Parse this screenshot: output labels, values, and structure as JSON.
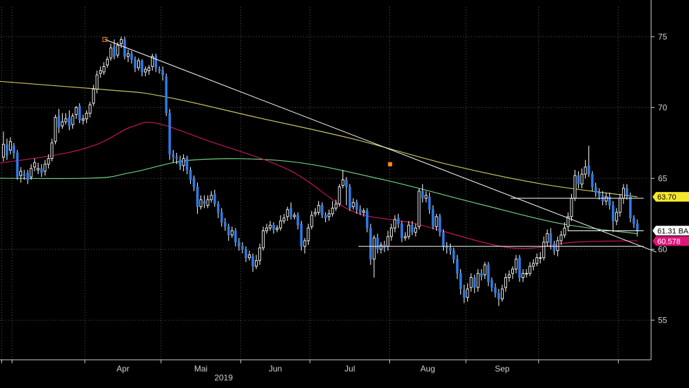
{
  "chart_data": {
    "type": "candlestick",
    "year_label": "2019",
    "x_months": [
      "Apr",
      "Mai",
      "Jun",
      "Jul",
      "Aug",
      "Sep"
    ],
    "y_ticks": [
      55,
      60,
      65,
      70,
      75
    ],
    "ylim": [
      52.2,
      77.1
    ],
    "grid": true,
    "candles_start": "2019-02-26",
    "candles": [
      [
        66.5,
        67.4,
        68.3,
        66.2
      ],
      [
        67.4,
        66.6,
        67.8,
        66.3
      ],
      [
        67.0,
        67.6,
        67.9,
        66.7
      ],
      [
        67.3,
        66.8,
        67.5,
        66.4
      ],
      [
        66.8,
        65.1,
        67.0,
        64.9
      ],
      [
        65.2,
        65.5,
        65.8,
        64.7
      ],
      [
        65.3,
        65.2,
        65.6,
        64.9
      ],
      [
        65.4,
        64.9,
        65.6,
        64.6
      ],
      [
        65.1,
        65.7,
        66.0,
        64.9
      ],
      [
        65.8,
        66.1,
        66.4,
        65.5
      ],
      [
        65.6,
        65.7,
        66.1,
        65.3
      ],
      [
        65.7,
        65.4,
        66.0,
        65.1
      ],
      [
        65.5,
        66.0,
        66.3,
        65.2
      ],
      [
        66.0,
        66.4,
        66.7,
        65.7
      ],
      [
        66.4,
        67.5,
        67.8,
        66.2
      ],
      [
        67.6,
        69.3,
        69.5,
        67.4
      ],
      [
        69.4,
        68.6,
        69.9,
        68.2
      ],
      [
        68.7,
        69.0,
        69.6,
        68.5
      ],
      [
        69.0,
        69.2,
        69.6,
        68.8
      ],
      [
        69.3,
        68.7,
        69.8,
        68.4
      ],
      [
        68.8,
        69.4,
        69.6,
        68.5
      ],
      [
        69.5,
        70.0,
        70.1,
        69.2
      ],
      [
        70.1,
        69.1,
        70.3,
        68.9
      ],
      [
        69.1,
        69.2,
        69.5,
        68.8
      ],
      [
        69.2,
        69.6,
        69.8,
        68.9
      ],
      [
        69.6,
        70.2,
        70.4,
        69.3
      ],
      [
        70.3,
        71.3,
        71.6,
        70.1
      ],
      [
        71.3,
        72.3,
        72.6,
        71.0
      ],
      [
        72.4,
        72.6,
        72.9,
        72.1
      ],
      [
        72.5,
        72.9,
        73.2,
        72.3
      ],
      [
        73.0,
        73.4,
        73.6,
        72.8
      ],
      [
        73.5,
        74.2,
        74.5,
        73.3
      ],
      [
        74.3,
        73.6,
        74.8,
        73.4
      ],
      [
        73.7,
        74.4,
        74.6,
        73.5
      ],
      [
        74.5,
        74.8,
        75.0,
        74.2
      ],
      [
        74.8,
        73.6,
        75.0,
        73.4
      ],
      [
        73.6,
        73.8,
        74.1,
        73.2
      ],
      [
        73.8,
        73.4,
        74.0,
        73.1
      ],
      [
        73.4,
        72.8,
        73.6,
        72.5
      ],
      [
        72.8,
        73.3,
        73.5,
        72.6
      ],
      [
        73.3,
        72.5,
        73.4,
        72.2
      ],
      [
        72.5,
        72.7,
        72.9,
        72.2
      ],
      [
        72.6,
        72.8,
        73.0,
        72.3
      ],
      [
        72.9,
        73.6,
        73.8,
        72.6
      ],
      [
        73.6,
        72.8,
        73.8,
        72.5
      ],
      [
        72.7,
        72.6,
        72.9,
        72.4
      ],
      [
        72.6,
        72.3,
        72.9,
        71.9
      ],
      [
        72.2,
        69.6,
        72.4,
        69.4
      ],
      [
        69.6,
        66.7,
        69.9,
        66.3
      ],
      [
        66.7,
        66.5,
        67.0,
        66.1
      ],
      [
        66.5,
        66.4,
        66.8,
        66.0
      ],
      [
        66.3,
        65.9,
        66.6,
        65.6
      ],
      [
        65.9,
        66.4,
        66.7,
        65.5
      ],
      [
        66.4,
        65.6,
        66.6,
        65.3
      ],
      [
        65.6,
        64.9,
        65.8,
        64.6
      ],
      [
        65.0,
        64.4,
        65.2,
        64.1
      ],
      [
        64.4,
        63.0,
        64.7,
        62.5
      ],
      [
        63.0,
        63.5,
        63.8,
        62.8
      ],
      [
        63.4,
        63.2,
        63.8,
        62.9
      ],
      [
        63.1,
        63.5,
        63.8,
        62.9
      ],
      [
        63.5,
        63.8,
        64.1,
        63.3
      ],
      [
        63.9,
        63.2,
        64.2,
        63.0
      ],
      [
        63.2,
        62.6,
        63.4,
        62.2
      ],
      [
        62.6,
        61.9,
        62.9,
        61.6
      ],
      [
        61.9,
        61.6,
        62.2,
        61.3
      ],
      [
        61.6,
        61.0,
        61.8,
        60.6
      ],
      [
        61.0,
        61.3,
        61.6,
        60.8
      ],
      [
        61.3,
        60.5,
        61.5,
        60.2
      ],
      [
        60.5,
        60.2,
        60.8,
        59.9
      ],
      [
        60.2,
        60.0,
        60.5,
        59.7
      ],
      [
        60.0,
        59.4,
        60.2,
        59.1
      ],
      [
        59.4,
        59.6,
        59.9,
        59.2
      ],
      [
        59.5,
        58.8,
        59.7,
        58.4
      ],
      [
        58.8,
        59.2,
        59.6,
        58.6
      ],
      [
        59.2,
        60.1,
        60.4,
        58.9
      ],
      [
        60.1,
        61.3,
        61.6,
        59.9
      ],
      [
        61.3,
        61.5,
        61.8,
        61.1
      ],
      [
        61.5,
        61.7,
        62.0,
        61.3
      ],
      [
        61.7,
        61.4,
        61.9,
        61.1
      ],
      [
        61.4,
        61.5,
        61.7,
        61.2
      ],
      [
        61.5,
        62.0,
        62.4,
        61.3
      ],
      [
        62.0,
        62.2,
        62.5,
        61.8
      ],
      [
        62.3,
        62.8,
        63.0,
        62.0
      ],
      [
        62.9,
        62.3,
        63.3,
        62.1
      ],
      [
        62.3,
        62.4,
        62.6,
        62.1
      ],
      [
        62.4,
        61.7,
        62.6,
        61.4
      ],
      [
        61.8,
        60.2,
        62.0,
        59.9
      ],
      [
        60.2,
        60.6,
        60.8,
        59.7
      ],
      [
        60.6,
        61.5,
        61.8,
        60.3
      ],
      [
        61.6,
        62.4,
        62.7,
        61.4
      ],
      [
        62.5,
        62.6,
        62.9,
        62.3
      ],
      [
        62.6,
        63.1,
        63.4,
        62.4
      ],
      [
        63.1,
        62.4,
        63.3,
        62.2
      ],
      [
        62.4,
        62.2,
        62.6,
        61.9
      ],
      [
        62.3,
        62.5,
        62.8,
        62.0
      ],
      [
        62.5,
        62.9,
        63.4,
        62.3
      ],
      [
        62.9,
        63.2,
        63.5,
        62.7
      ],
      [
        63.2,
        64.4,
        64.6,
        63.0
      ],
      [
        64.5,
        64.9,
        65.6,
        64.3
      ],
      [
        64.9,
        64.4,
        65.1,
        63.1
      ],
      [
        64.4,
        62.9,
        64.6,
        62.7
      ],
      [
        63.0,
        63.3,
        63.6,
        62.8
      ],
      [
        63.3,
        62.8,
        63.5,
        62.5
      ],
      [
        62.8,
        62.6,
        63.1,
        62.4
      ],
      [
        62.6,
        62.7,
        62.9,
        62.3
      ],
      [
        62.7,
        61.5,
        62.9,
        61.2
      ],
      [
        61.5,
        59.3,
        61.8,
        58.9
      ],
      [
        59.3,
        60.8,
        61.0,
        58.0
      ],
      [
        60.8,
        60.0,
        61.1,
        59.7
      ],
      [
        60.0,
        60.3,
        60.5,
        59.7
      ],
      [
        60.3,
        60.1,
        60.6,
        59.8
      ],
      [
        60.2,
        60.9,
        61.3,
        59.9
      ],
      [
        60.9,
        61.5,
        61.8,
        60.6
      ],
      [
        61.5,
        62.1,
        62.4,
        61.2
      ],
      [
        62.2,
        61.8,
        62.5,
        61.5
      ],
      [
        61.8,
        60.8,
        62.0,
        60.5
      ],
      [
        60.8,
        60.9,
        61.2,
        60.6
      ],
      [
        60.9,
        61.7,
        62.0,
        60.7
      ],
      [
        61.7,
        61.2,
        62.0,
        61.0
      ],
      [
        61.2,
        61.5,
        61.8,
        60.9
      ],
      [
        61.6,
        64.1,
        64.3,
        61.4
      ],
      [
        64.1,
        63.6,
        64.6,
        63.3
      ],
      [
        63.6,
        63.8,
        64.1,
        63.3
      ],
      [
        63.7,
        62.8,
        64.0,
        62.5
      ],
      [
        62.8,
        61.6,
        63.1,
        61.4
      ],
      [
        61.6,
        62.3,
        62.5,
        61.3
      ],
      [
        62.3,
        61.2,
        62.5,
        60.9
      ],
      [
        61.2,
        60.2,
        61.4,
        59.9
      ],
      [
        60.2,
        60.1,
        60.5,
        59.7
      ],
      [
        60.1,
        59.9,
        60.4,
        59.6
      ],
      [
        59.9,
        59.3,
        60.1,
        59.0
      ],
      [
        59.3,
        58.3,
        59.6,
        57.9
      ],
      [
        58.3,
        57.2,
        58.6,
        56.8
      ],
      [
        57.1,
        56.6,
        57.5,
        56.2
      ],
      [
        56.6,
        57.2,
        57.6,
        56.3
      ],
      [
        57.3,
        58.0,
        58.3,
        57.0
      ],
      [
        58.0,
        57.3,
        58.2,
        56.9
      ],
      [
        57.3,
        58.3,
        58.6,
        57.0
      ],
      [
        58.3,
        58.1,
        58.6,
        57.8
      ],
      [
        58.2,
        58.9,
        59.1,
        57.9
      ],
      [
        58.9,
        57.7,
        59.1,
        57.4
      ],
      [
        57.8,
        57.3,
        58.0,
        57.0
      ],
      [
        57.3,
        56.9,
        57.6,
        56.6
      ],
      [
        56.9,
        56.5,
        57.2,
        56.0
      ],
      [
        56.5,
        57.2,
        57.5,
        56.3
      ],
      [
        57.3,
        58.0,
        58.3,
        57.0
      ],
      [
        58.0,
        58.2,
        58.5,
        57.7
      ],
      [
        58.3,
        58.6,
        58.8,
        57.9
      ],
      [
        58.6,
        59.3,
        59.6,
        58.3
      ],
      [
        59.4,
        58.0,
        59.6,
        57.7
      ],
      [
        58.0,
        58.3,
        58.6,
        57.7
      ],
      [
        58.3,
        58.3,
        58.6,
        58.0
      ],
      [
        58.3,
        58.8,
        59.1,
        58.1
      ],
      [
        58.8,
        59.0,
        59.3,
        58.5
      ],
      [
        59.0,
        59.4,
        59.7,
        58.8
      ],
      [
        59.4,
        59.4,
        59.8,
        59.0
      ],
      [
        59.4,
        60.5,
        60.9,
        59.2
      ],
      [
        60.5,
        61.1,
        61.4,
        60.2
      ],
      [
        61.1,
        60.4,
        61.5,
        60.0
      ],
      [
        60.4,
        59.9,
        60.6,
        59.6
      ],
      [
        59.9,
        60.6,
        60.9,
        59.5
      ],
      [
        60.6,
        61.0,
        61.3,
        60.3
      ],
      [
        61.0,
        61.5,
        61.9,
        60.8
      ],
      [
        61.6,
        62.3,
        62.6,
        61.3
      ],
      [
        62.3,
        63.6,
        63.9,
        62.0
      ],
      [
        63.6,
        65.2,
        65.6,
        63.4
      ],
      [
        65.2,
        64.6,
        65.5,
        64.3
      ],
      [
        64.6,
        65.3,
        65.7,
        64.3
      ],
      [
        65.3,
        65.8,
        66.3,
        65.0
      ],
      [
        65.9,
        65.3,
        67.3,
        65.1
      ],
      [
        65.3,
        64.4,
        65.5,
        64.1
      ],
      [
        64.4,
        64.0,
        64.7,
        63.7
      ],
      [
        64.0,
        63.8,
        64.3,
        63.5
      ],
      [
        63.8,
        63.4,
        64.1,
        63.1
      ],
      [
        63.4,
        63.7,
        64.0,
        63.1
      ],
      [
        63.7,
        63.1,
        64.0,
        62.8
      ],
      [
        63.1,
        62.0,
        63.4,
        61.2
      ],
      [
        62.0,
        62.6,
        62.9,
        61.7
      ],
      [
        62.6,
        63.6,
        63.9,
        62.3
      ],
      [
        63.6,
        64.3,
        64.6,
        63.2
      ],
      [
        64.3,
        63.8,
        64.6,
        63.5
      ],
      [
        63.8,
        62.2,
        64.0,
        61.9
      ],
      [
        62.2,
        61.8,
        62.4,
        61.5
      ],
      [
        61.8,
        61.3,
        62.1,
        60.9
      ]
    ],
    "ma_yellow": [
      [
        -0.2,
        72.5
      ],
      [
        0.15,
        71.3
      ],
      [
        0.25,
        70.8
      ],
      [
        0.4,
        69.3
      ],
      [
        0.55,
        67.8
      ],
      [
        0.7,
        66.0
      ],
      [
        0.85,
        64.6
      ],
      [
        1.0,
        63.7
      ]
    ],
    "ma_green": [
      [
        -0.2,
        65.1
      ],
      [
        0.12,
        65.0
      ],
      [
        0.2,
        65.4
      ],
      [
        0.3,
        66.3
      ],
      [
        0.45,
        66.2
      ],
      [
        0.6,
        64.9
      ],
      [
        0.75,
        63.2
      ],
      [
        0.88,
        61.8
      ],
      [
        1.0,
        61.1
      ]
    ],
    "ma_magenta": [
      [
        -0.2,
        65.0
      ],
      [
        0.1,
        66.8
      ],
      [
        0.2,
        68.6
      ],
      [
        0.24,
        68.9
      ],
      [
        0.32,
        67.7
      ],
      [
        0.45,
        65.6
      ],
      [
        0.55,
        62.7
      ],
      [
        0.65,
        61.8
      ],
      [
        0.8,
        60.1
      ],
      [
        0.9,
        60.5
      ],
      [
        1.0,
        60.6
      ]
    ],
    "trendline": [
      [
        0.16,
        74.8
      ],
      [
        1.03,
        59.8
      ]
    ],
    "trendline_marker": [
      0.61,
      66.0
    ],
    "support_line": [
      [
        0.56,
        60.2
      ],
      [
        1.01,
        60.2
      ]
    ],
    "box_lines": [
      [
        [
          0.8,
          63.6
        ],
        [
          1.01,
          63.6
        ]
      ],
      [
        [
          0.89,
          61.3
        ],
        [
          1.01,
          61.3
        ]
      ]
    ],
    "price_labels": [
      {
        "text": "63.70",
        "value": 63.7,
        "bg": "#f5e62e",
        "color": "#000000"
      },
      {
        "text": "61.31 BA",
        "value": 61.31,
        "bg": "#ffffff",
        "color": "#000000"
      },
      {
        "text": "60.578",
        "value": 60.578,
        "bg": "#e0147a",
        "color": "#ffffff"
      }
    ],
    "colors": {
      "up": "#ffffff",
      "down": "#2f7ae5",
      "ma_yellow": "#c9c460",
      "ma_green": "#6fcf7f",
      "ma_magenta": "#c2185b",
      "trendline": "#ffffff",
      "marker": "#ff8a1e",
      "grid": "#5a5a5a",
      "axis": "#d0d0d0"
    }
  }
}
